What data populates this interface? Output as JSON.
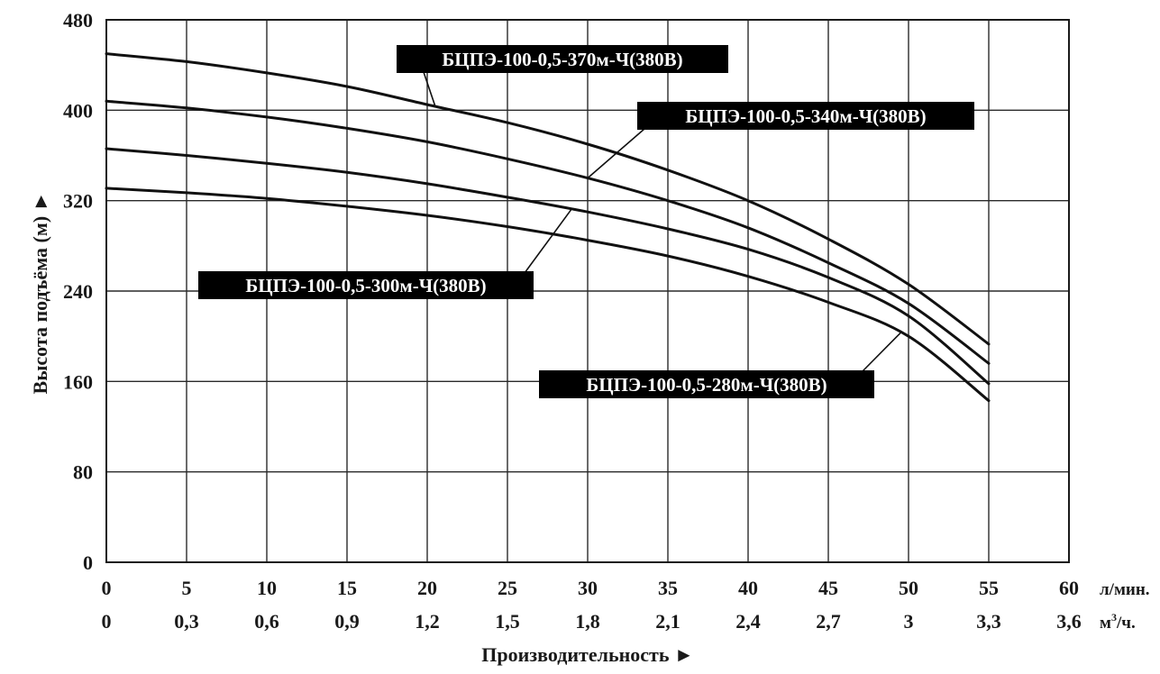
{
  "chart_data": {
    "type": "line",
    "title": "",
    "xlabel": "Производительность ►",
    "ylabel": "Высота подъёма (м) ►",
    "x_unit_primary": "л/мин.",
    "x_unit_secondary": "м³/ч.",
    "x_unit_secondary_base": "м",
    "x_unit_secondary_sup": "3",
    "x_unit_secondary_tail": "/ч.",
    "xlim": [
      0,
      60
    ],
    "ylim": [
      0,
      480
    ],
    "grid": true,
    "x_ticks": [
      "0",
      "5",
      "10",
      "15",
      "20",
      "25",
      "30",
      "35",
      "40",
      "45",
      "50",
      "55",
      "60"
    ],
    "x_ticks_secondary": [
      "0",
      "0,3",
      "0,6",
      "0,9",
      "1,2",
      "1,5",
      "1,8",
      "2,1",
      "2,4",
      "2,7",
      "3",
      "3,3",
      "3,6"
    ],
    "y_ticks": [
      "0",
      "80",
      "160",
      "240",
      "320",
      "400",
      "480"
    ],
    "x": [
      0,
      5,
      10,
      15,
      20,
      25,
      30,
      35,
      40,
      45,
      50,
      55
    ],
    "series": [
      {
        "name": "БЦПЭ-100-0,5-370м-Ч(380В)",
        "values": [
          450,
          443,
          433,
          421,
          405,
          389,
          370,
          347,
          320,
          286,
          246,
          193
        ]
      },
      {
        "name": "БЦПЭ-100-0,5-340м-Ч(380В)",
        "values": [
          408,
          402,
          394,
          384,
          372,
          357,
          340,
          320,
          296,
          265,
          229,
          176
        ]
      },
      {
        "name": "БЦПЭ-100-0,5-300м-Ч(380В)",
        "values": [
          366,
          360,
          353,
          345,
          335,
          323,
          310,
          295,
          277,
          252,
          218,
          158
        ]
      },
      {
        "name": "БЦПЭ-100-0,5-280м-Ч(380В)",
        "values": [
          331,
          327,
          322,
          315,
          307,
          297,
          285,
          271,
          253,
          230,
          200,
          143
        ]
      }
    ]
  }
}
